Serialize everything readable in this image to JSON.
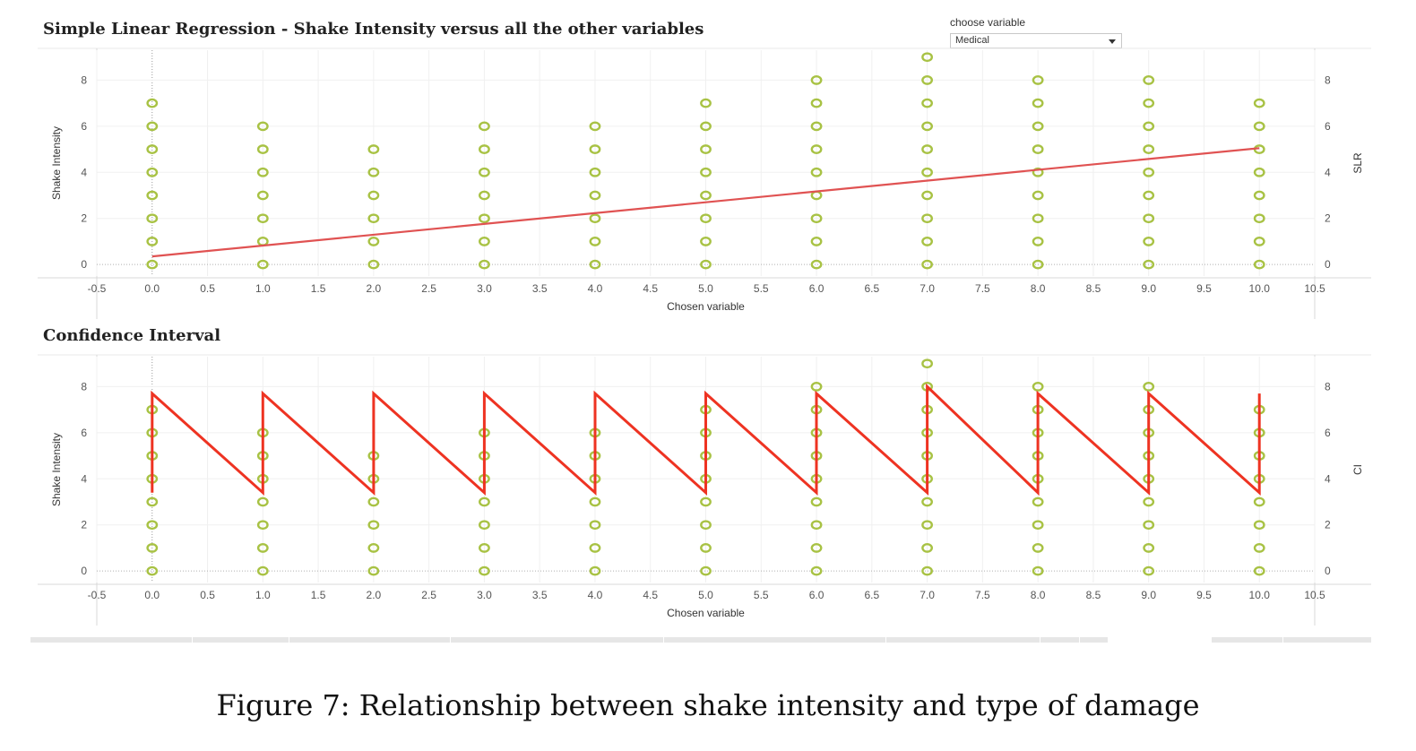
{
  "chart_data": [
    {
      "type": "scatter",
      "title": "Simple Linear Regression - Shake Intensity versus all the other variables",
      "xlabel": "Chosen variable",
      "ylabel": "Shake Intensity",
      "y2label": "SLR",
      "xlim": [
        -0.5,
        10.5
      ],
      "ylim": [
        -0.5,
        9.3
      ],
      "xticks": [
        "-0.5",
        "0.0",
        "0.5",
        "1.0",
        "1.5",
        "2.0",
        "2.5",
        "3.0",
        "3.5",
        "4.0",
        "4.5",
        "5.0",
        "5.5",
        "6.0",
        "6.5",
        "7.0",
        "7.5",
        "8.0",
        "8.5",
        "9.0",
        "9.5",
        "10.0",
        "10.5"
      ],
      "yticks": [
        "0",
        "2",
        "4",
        "6",
        "8"
      ],
      "grid": true,
      "points": {
        "x": [
          0,
          1,
          2,
          3,
          4,
          5,
          6,
          7,
          8,
          9,
          10
        ],
        "y_values": [
          [
            0,
            1,
            2,
            3,
            4,
            5,
            6,
            7
          ],
          [
            0,
            1,
            2,
            3,
            4,
            5,
            6
          ],
          [
            0,
            1,
            2,
            3,
            4,
            5
          ],
          [
            0,
            1,
            2,
            3,
            4,
            5,
            6
          ],
          [
            0,
            1,
            2,
            3,
            4,
            5,
            6
          ],
          [
            0,
            1,
            2,
            3,
            4,
            5,
            6,
            7
          ],
          [
            0,
            1,
            2,
            3,
            4,
            5,
            6,
            7,
            8
          ],
          [
            0,
            1,
            2,
            3,
            4,
            5,
            6,
            7,
            8,
            9
          ],
          [
            0,
            1,
            2,
            3,
            4,
            5,
            6,
            7,
            8
          ],
          [
            0,
            1,
            2,
            3,
            4,
            5,
            6,
            7,
            8
          ],
          [
            0,
            1,
            2,
            3,
            4,
            5,
            6,
            7
          ]
        ]
      },
      "series": [
        {
          "kind": "regression-line",
          "x": [
            0,
            10
          ],
          "y": [
            0.35,
            5.05
          ]
        }
      ],
      "colors": {
        "points": "#a8c244",
        "line": "#e05252"
      }
    },
    {
      "type": "line",
      "title": "Confidence Interval",
      "xlabel": "Chosen variable",
      "ylabel": "Shake Intensity",
      "y2label": "CI",
      "xlim": [
        -0.5,
        10.5
      ],
      "ylim": [
        -0.5,
        9.3
      ],
      "xticks": [
        "-0.5",
        "0.0",
        "0.5",
        "1.0",
        "1.5",
        "2.0",
        "2.5",
        "3.0",
        "3.5",
        "4.0",
        "4.5",
        "5.0",
        "5.5",
        "6.0",
        "6.5",
        "7.0",
        "7.5",
        "8.0",
        "8.5",
        "9.0",
        "9.5",
        "10.0",
        "10.5"
      ],
      "yticks": [
        "0",
        "2",
        "4",
        "6",
        "8"
      ],
      "grid": true,
      "points": {
        "x": [
          0,
          1,
          2,
          3,
          4,
          5,
          6,
          7,
          8,
          9,
          10
        ],
        "y_values": [
          [
            0,
            1,
            2,
            3,
            4,
            5,
            6,
            7
          ],
          [
            0,
            1,
            2,
            3,
            4,
            5,
            6
          ],
          [
            0,
            1,
            2,
            3,
            4,
            5
          ],
          [
            0,
            1,
            2,
            3,
            4,
            5,
            6
          ],
          [
            0,
            1,
            2,
            3,
            4,
            5,
            6
          ],
          [
            0,
            1,
            2,
            3,
            4,
            5,
            6,
            7
          ],
          [
            0,
            1,
            2,
            3,
            4,
            5,
            6,
            7,
            8
          ],
          [
            0,
            1,
            2,
            3,
            4,
            5,
            6,
            7,
            8,
            9
          ],
          [
            0,
            1,
            2,
            3,
            4,
            5,
            6,
            7,
            8
          ],
          [
            0,
            1,
            2,
            3,
            4,
            5,
            6,
            7,
            8
          ],
          [
            0,
            1,
            2,
            3,
            4,
            5,
            6,
            7
          ]
        ]
      },
      "series": [
        {
          "kind": "confidence-interval-path",
          "x": [
            0,
            0,
            1,
            1,
            1,
            2,
            2,
            2,
            3,
            3,
            3,
            4,
            4,
            4,
            5,
            5,
            5,
            6,
            6,
            6,
            7,
            7,
            7,
            8,
            8,
            8,
            9,
            9,
            9,
            10,
            10
          ],
          "y": [
            3.4,
            7.7,
            3.4,
            3.4,
            7.7,
            3.4,
            3.4,
            7.7,
            3.4,
            3.4,
            7.7,
            3.4,
            3.4,
            7.7,
            3.4,
            3.4,
            7.7,
            3.4,
            3.4,
            7.7,
            3.4,
            3.4,
            8.0,
            3.4,
            3.4,
            7.7,
            3.4,
            3.4,
            7.7,
            3.4,
            7.7
          ]
        }
      ],
      "colors": {
        "points": "#a8c244",
        "line": "#ee3322"
      }
    }
  ],
  "control": {
    "label": "choose variable",
    "selected": "Medical"
  },
  "caption": "Figure 7: Relationship between shake intensity and type of damage"
}
